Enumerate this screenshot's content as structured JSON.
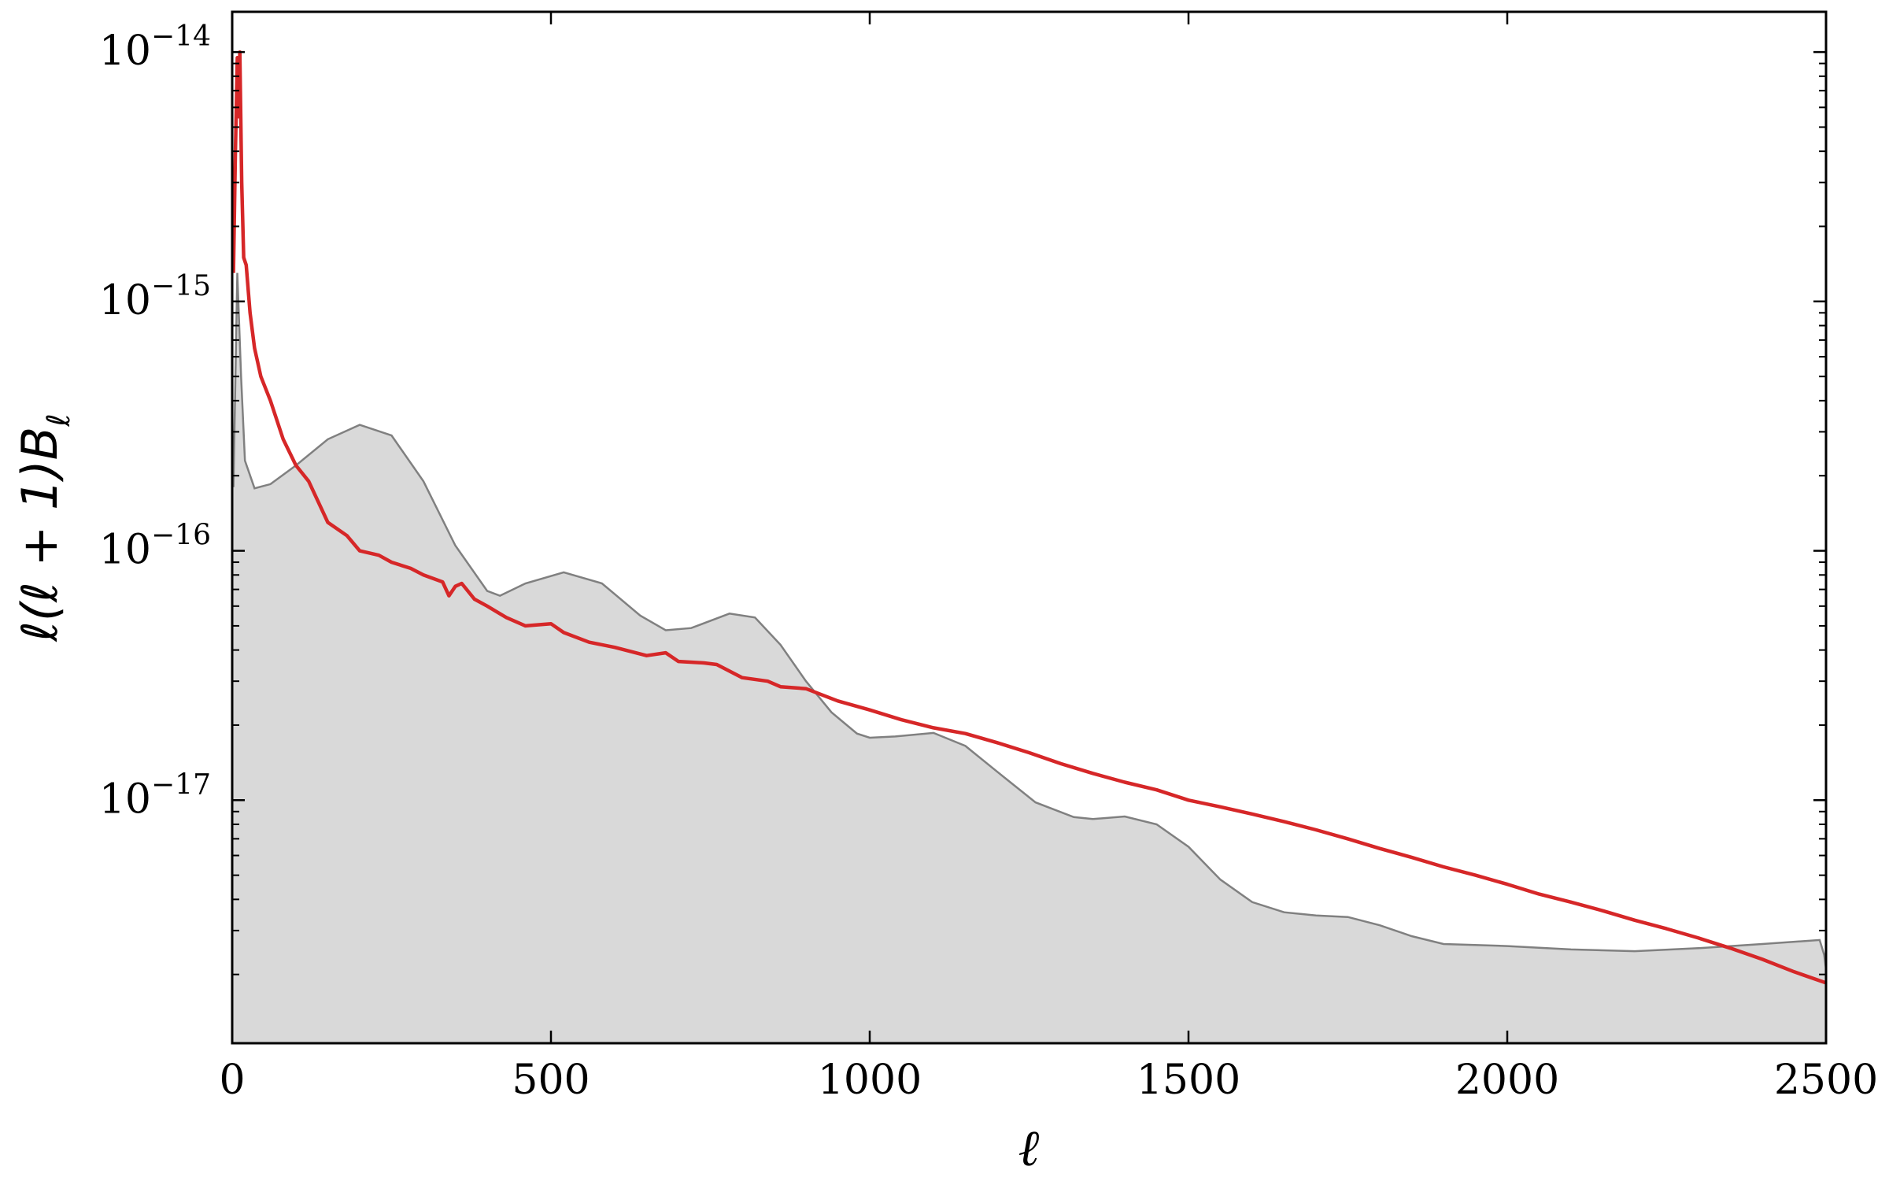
{
  "chart_data": {
    "type": "area",
    "title": "",
    "xlabel": "ℓ",
    "ylabel": "ℓ(ℓ + 1)Bℓ",
    "ylabel_parts": {
      "main": "ℓ(ℓ + 1)B",
      "sub": "ℓ"
    },
    "xlim": [
      0,
      2500
    ],
    "ylim": [
      1.06e-18,
      1.45e-14
    ],
    "yscale": "log",
    "grid": false,
    "legend": "none",
    "x_ticks": [
      0,
      500,
      1000,
      1500,
      2000,
      2500
    ],
    "x_tick_labels": [
      "0",
      "500",
      "1000",
      "1500",
      "2000",
      "2500"
    ],
    "y_ticks": [
      1e-17,
      1e-16,
      1e-15,
      1e-14
    ],
    "y_tick_labels": [
      {
        "base": "10",
        "exp": "−17"
      },
      {
        "base": "10",
        "exp": "−16"
      },
      {
        "base": "10",
        "exp": "−15"
      },
      {
        "base": "10",
        "exp": "−14"
      }
    ],
    "series": [
      {
        "style": "filled-area",
        "color": "#808080",
        "fill": "#d9d9d9",
        "x": [
          2,
          8,
          14,
          20,
          35,
          60,
          100,
          150,
          200,
          250,
          300,
          350,
          400,
          420,
          460,
          520,
          580,
          640,
          680,
          720,
          780,
          820,
          860,
          900,
          940,
          980,
          1000,
          1040,
          1100,
          1150,
          1200,
          1260,
          1320,
          1350,
          1400,
          1450,
          1500,
          1550,
          1600,
          1650,
          1700,
          1750,
          1800,
          1850,
          1900,
          2000,
          2100,
          2200,
          2300,
          2400,
          2490,
          2497,
          2500
        ],
        "y": [
          1.8e-16,
          1.3e-15,
          5e-16,
          2.3e-16,
          1.78e-16,
          1.85e-16,
          2.2e-16,
          2.8e-16,
          3.2e-16,
          2.9e-16,
          1.9e-16,
          1.05e-16,
          6.9e-17,
          6.6e-17,
          7.4e-17,
          8.2e-17,
          7.4e-17,
          5.5e-17,
          4.8e-17,
          4.9e-17,
          5.6e-17,
          5.4e-17,
          4.2e-17,
          3e-17,
          2.25e-17,
          1.85e-17,
          1.78e-17,
          1.8e-17,
          1.86e-17,
          1.65e-17,
          1.3e-17,
          9.8e-18,
          8.55e-18,
          8.4e-18,
          8.6e-18,
          8e-18,
          6.5e-18,
          4.8e-18,
          3.9e-18,
          3.55e-18,
          3.45e-18,
          3.4e-18,
          3.15e-18,
          2.85e-18,
          2.65e-18,
          2.6e-18,
          2.52e-18,
          2.48e-18,
          2.55e-18,
          2.65e-18,
          2.75e-18,
          2.4e-18,
          2.1e-18
        ]
      },
      {
        "style": "line",
        "color": "#d62728",
        "x": [
          2,
          5,
          8,
          10,
          12,
          15,
          18,
          22,
          28,
          35,
          45,
          60,
          80,
          100,
          120,
          150,
          180,
          200,
          230,
          250,
          280,
          300,
          330,
          340,
          350,
          360,
          380,
          400,
          430,
          460,
          500,
          520,
          560,
          600,
          650,
          680,
          700,
          740,
          760,
          800,
          840,
          860,
          900,
          950,
          1000,
          1050,
          1100,
          1150,
          1200,
          1250,
          1300,
          1350,
          1400,
          1450,
          1500,
          1550,
          1600,
          1650,
          1700,
          1750,
          1800,
          1850,
          1900,
          1950,
          2000,
          2050,
          2100,
          2150,
          2200,
          2250,
          2300,
          2350,
          2400,
          2450,
          2500
        ],
        "y": [
          1.3e-15,
          4e-15,
          9.5e-15,
          5.5e-15,
          1e-14,
          3e-15,
          1.5e-15,
          1.4e-15,
          9e-16,
          6.5e-16,
          5e-16,
          4e-16,
          2.8e-16,
          2.2e-16,
          1.9e-16,
          1.3e-16,
          1.15e-16,
          1e-16,
          9.6e-17,
          9e-17,
          8.5e-17,
          8e-17,
          7.5e-17,
          6.6e-17,
          7.2e-17,
          7.4e-17,
          6.4e-17,
          6e-17,
          5.4e-17,
          5e-17,
          5.1e-17,
          4.7e-17,
          4.3e-17,
          4.1e-17,
          3.8e-17,
          3.9e-17,
          3.6e-17,
          3.55e-17,
          3.5e-17,
          3.1e-17,
          3e-17,
          2.85e-17,
          2.8e-17,
          2.5e-17,
          2.3e-17,
          2.1e-17,
          1.95e-17,
          1.85e-17,
          1.7e-17,
          1.55e-17,
          1.4e-17,
          1.28e-17,
          1.18e-17,
          1.1e-17,
          1e-17,
          9.4e-18,
          8.8e-18,
          8.2e-18,
          7.6e-18,
          7e-18,
          6.4e-18,
          5.9e-18,
          5.4e-18,
          5e-18,
          4.6e-18,
          4.2e-18,
          3.9e-18,
          3.6e-18,
          3.3e-18,
          3.05e-18,
          2.8e-18,
          2.55e-18,
          2.3e-18,
          2.05e-18,
          1.85e-18
        ]
      }
    ]
  }
}
